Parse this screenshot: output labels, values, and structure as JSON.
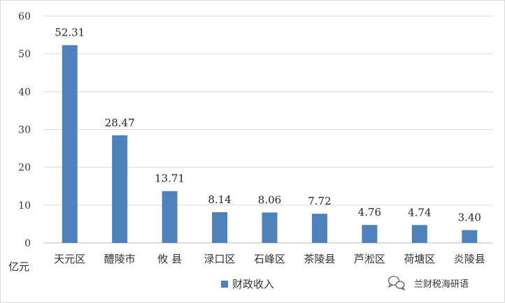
{
  "chart_data": {
    "type": "bar",
    "categories": [
      "天元区",
      "醴陵市",
      "攸 县",
      "渌口区",
      "石峰区",
      "茶陵县",
      "芦淞区",
      "荷塘区",
      "炎陵县"
    ],
    "series": [
      {
        "name": "财政收入",
        "values": [
          52.31,
          28.47,
          13.71,
          8.14,
          8.06,
          7.72,
          4.76,
          4.74,
          3.4
        ],
        "labels": [
          "52.31",
          "28.47",
          "13.71",
          "8.14",
          "8.06",
          "7.72",
          "4.76",
          "4.74",
          "3.40"
        ],
        "color": "#4f81bd"
      }
    ],
    "ylabel": "亿元",
    "ylim": [
      0,
      60
    ],
    "yticks": [
      "0",
      "10",
      "20",
      "30",
      "40",
      "50",
      "60"
    ],
    "grid": true,
    "legend_position": "bottom"
  },
  "watermark": {
    "text": "兰财税海研语",
    "icon": "wechat-icon"
  },
  "colors": {
    "bar": "#4f81bd",
    "grid": "#d9d9d9",
    "axis": "#bfbfbf"
  }
}
